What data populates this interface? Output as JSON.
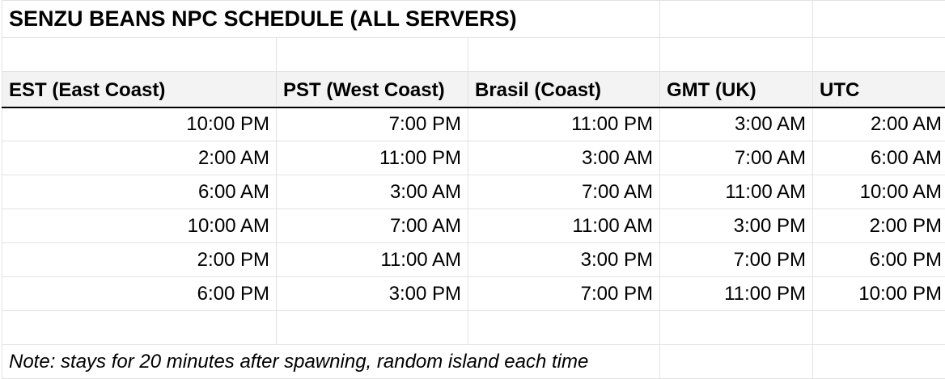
{
  "title": "SENZU BEANS NPC SCHEDULE (ALL SERVERS)",
  "columns": [
    "EST (East Coast)",
    "PST (West Coast)",
    "Brasil (Coast)",
    "GMT (UK)",
    "UTC"
  ],
  "rows": [
    [
      "10:00 PM",
      "7:00 PM",
      "11:00 PM",
      "3:00 AM",
      "2:00 AM"
    ],
    [
      "2:00 AM",
      "11:00 PM",
      "3:00 AM",
      "7:00 AM",
      "6:00 AM"
    ],
    [
      "6:00 AM",
      "3:00 AM",
      "7:00 AM",
      "11:00 AM",
      "10:00 AM"
    ],
    [
      "10:00 AM",
      "7:00 AM",
      "11:00 AM",
      "3:00 PM",
      "2:00 PM"
    ],
    [
      "2:00 PM",
      "11:00 AM",
      "3:00 PM",
      "7:00 PM",
      "6:00 PM"
    ],
    [
      "6:00 PM",
      "3:00 PM",
      "7:00 PM",
      "11:00 PM",
      "10:00 PM"
    ]
  ],
  "note": "Note: stays for 20 minutes after spawning, random island each time",
  "colors": {
    "header_bg": "#f3f3f3",
    "grid": "#e2e2e2",
    "header_border": "#000000"
  }
}
